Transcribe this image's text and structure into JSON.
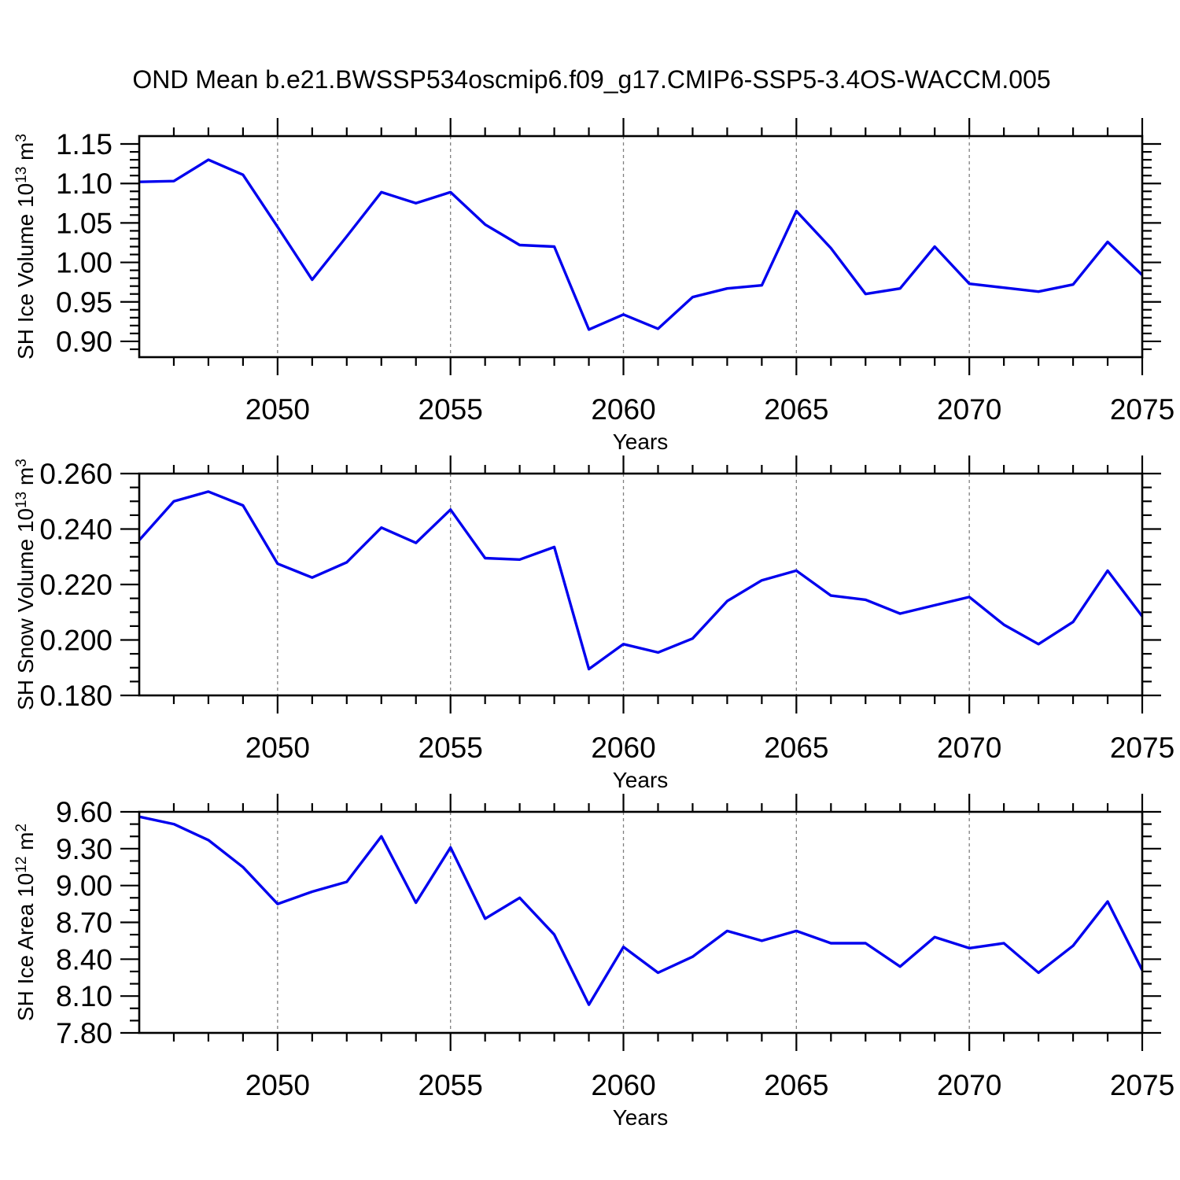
{
  "title": "OND Mean b.e21.BWSSP534oscmip6.f09_g17.CMIP6-SSP5-3.4OS-WACCM.005",
  "xlabel": "Years",
  "colors": {
    "line": "#0000ee",
    "grid": "#808080",
    "axis": "#000000",
    "text": "#000000",
    "background": "#ffffff"
  },
  "x_gridline_years": [
    2050,
    2055,
    2060,
    2065,
    2070
  ],
  "chart_data": [
    {
      "type": "line",
      "name": "sh-ice-volume",
      "ylabel_segments": [
        {
          "text": "SH Ice Volume 10"
        },
        {
          "text": "13",
          "sup": true
        },
        {
          "text": " m"
        },
        {
          "text": "3",
          "sup": true
        }
      ],
      "xlabel": "Years",
      "xlim": [
        2046,
        2075
      ],
      "ylim": [
        0.88,
        1.16
      ],
      "xticks": [
        2050,
        2055,
        2060,
        2065,
        2070,
        2075
      ],
      "xtick_labels": [
        "2050",
        "2055",
        "2060",
        "2065",
        "2070",
        "2075"
      ],
      "yticks": [
        0.9,
        0.95,
        1.0,
        1.05,
        1.1,
        1.15
      ],
      "ytick_labels": [
        "0.90",
        "0.95",
        "1.00",
        "1.05",
        "1.10",
        "1.15"
      ],
      "yminor_step": 0.01,
      "grid": "vertical-dashed",
      "x": [
        2046,
        2047,
        2048,
        2049,
        2050,
        2051,
        2052,
        2053,
        2054,
        2055,
        2056,
        2057,
        2058,
        2059,
        2060,
        2061,
        2062,
        2063,
        2064,
        2065,
        2066,
        2067,
        2068,
        2069,
        2070,
        2071,
        2072,
        2073,
        2074,
        2075
      ],
      "values": [
        1.102,
        1.103,
        1.13,
        1.111,
        1.045,
        0.978,
        1.033,
        1.089,
        1.075,
        1.089,
        1.048,
        1.022,
        1.02,
        0.915,
        0.934,
        0.916,
        0.956,
        0.967,
        0.971,
        1.065,
        1.018,
        0.96,
        0.967,
        1.02,
        0.973,
        0.968,
        0.963,
        0.972,
        1.026,
        0.984
      ]
    },
    {
      "type": "line",
      "name": "sh-snow-volume",
      "ylabel_segments": [
        {
          "text": "SH Snow Volume 10"
        },
        {
          "text": "13",
          "sup": true
        },
        {
          "text": " m"
        },
        {
          "text": "3",
          "sup": true
        }
      ],
      "xlabel": "Years",
      "xlim": [
        2046,
        2075
      ],
      "ylim": [
        0.18,
        0.26
      ],
      "xticks": [
        2050,
        2055,
        2060,
        2065,
        2070,
        2075
      ],
      "xtick_labels": [
        "2050",
        "2055",
        "2060",
        "2065",
        "2070",
        "2075"
      ],
      "yticks": [
        0.18,
        0.2,
        0.22,
        0.24,
        0.26
      ],
      "ytick_labels": [
        "0.180",
        "0.200",
        "0.220",
        "0.240",
        "0.260"
      ],
      "yminor_step": 0.005,
      "grid": "vertical-dashed",
      "x": [
        2046,
        2047,
        2048,
        2049,
        2050,
        2051,
        2052,
        2053,
        2054,
        2055,
        2056,
        2057,
        2058,
        2059,
        2060,
        2061,
        2062,
        2063,
        2064,
        2065,
        2066,
        2067,
        2068,
        2069,
        2070,
        2071,
        2072,
        2073,
        2074,
        2075
      ],
      "values": [
        0.236,
        0.25,
        0.2535,
        0.2485,
        0.2275,
        0.2225,
        0.228,
        0.2405,
        0.235,
        0.247,
        0.2295,
        0.229,
        0.2335,
        0.1895,
        0.1985,
        0.1955,
        0.2005,
        0.214,
        0.2215,
        0.225,
        0.216,
        0.2145,
        0.2095,
        0.2125,
        0.2155,
        0.2055,
        0.1985,
        0.2065,
        0.225,
        0.2085
      ]
    },
    {
      "type": "line",
      "name": "sh-ice-area",
      "ylabel_segments": [
        {
          "text": "SH Ice Area 10"
        },
        {
          "text": "12",
          "sup": true
        },
        {
          "text": " m"
        },
        {
          "text": "2",
          "sup": true
        }
      ],
      "xlabel": "Years",
      "xlim": [
        2046,
        2075
      ],
      "ylim": [
        7.8,
        9.6
      ],
      "xticks": [
        2050,
        2055,
        2060,
        2065,
        2070,
        2075
      ],
      "xtick_labels": [
        "2050",
        "2055",
        "2060",
        "2065",
        "2070",
        "2075"
      ],
      "yticks": [
        7.8,
        8.1,
        8.4,
        8.7,
        9.0,
        9.3,
        9.6
      ],
      "ytick_labels": [
        "7.80",
        "8.10",
        "8.40",
        "8.70",
        "9.00",
        "9.30",
        "9.60"
      ],
      "yminor_step": 0.1,
      "grid": "vertical-dashed",
      "x": [
        2046,
        2047,
        2048,
        2049,
        2050,
        2051,
        2052,
        2053,
        2054,
        2055,
        2056,
        2057,
        2058,
        2059,
        2060,
        2061,
        2062,
        2063,
        2064,
        2065,
        2066,
        2067,
        2068,
        2069,
        2070,
        2071,
        2072,
        2073,
        2074,
        2075
      ],
      "values": [
        9.56,
        9.5,
        9.37,
        9.15,
        8.85,
        8.95,
        9.03,
        9.4,
        8.86,
        9.31,
        8.73,
        8.9,
        8.6,
        8.03,
        8.5,
        8.29,
        8.42,
        8.63,
        8.55,
        8.63,
        8.53,
        8.53,
        8.34,
        8.58,
        8.49,
        8.53,
        8.29,
        8.51,
        8.87,
        8.31
      ]
    }
  ]
}
